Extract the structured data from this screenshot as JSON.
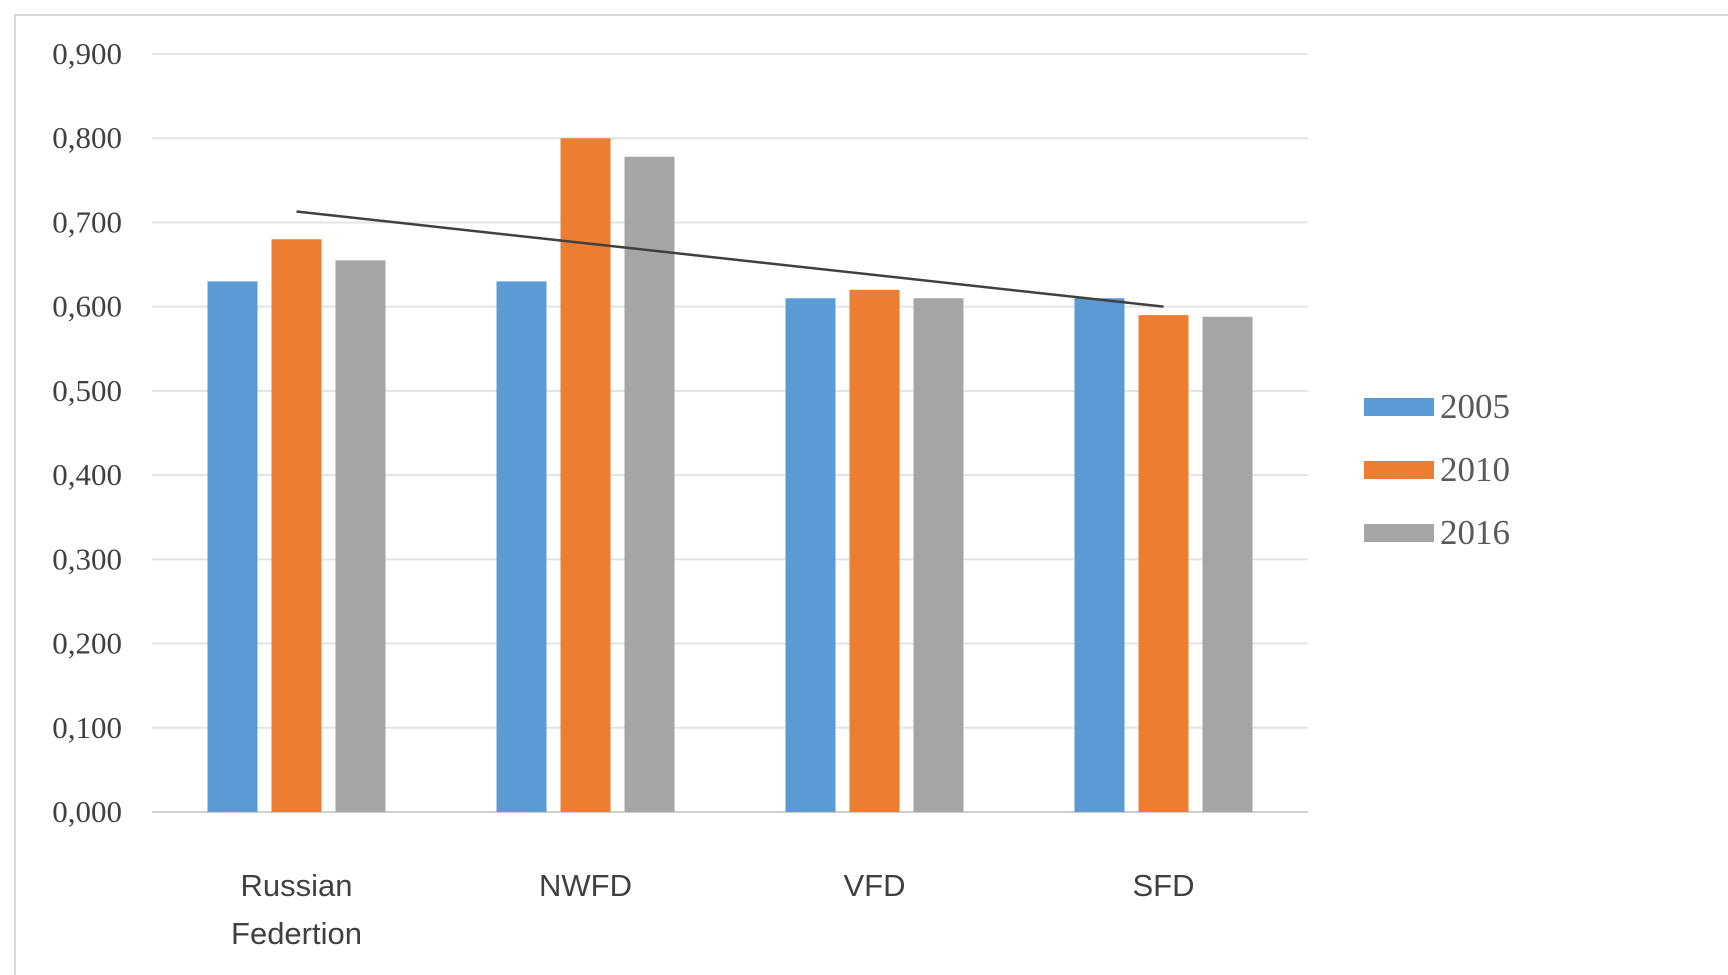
{
  "chart_data": {
    "type": "bar",
    "title": "",
    "xlabel": "",
    "ylabel": "",
    "categories": [
      [
        "Russian",
        "Federtion"
      ],
      [
        "NWFD"
      ],
      [
        "VFD"
      ],
      [
        "SFD"
      ]
    ],
    "series": [
      {
        "name": "2005",
        "color": "#5b9bd5",
        "values": [
          0.63,
          0.63,
          0.61,
          0.61
        ]
      },
      {
        "name": "2010",
        "color": "#ed7d31",
        "values": [
          0.68,
          0.8,
          0.62,
          0.59
        ]
      },
      {
        "name": "2016",
        "color": "#a5a5a5",
        "values": [
          0.655,
          0.778,
          0.61,
          0.588
        ]
      }
    ],
    "ylim": [
      0,
      0.9
    ],
    "yticks": [
      "0,000",
      "0,100",
      "0,200",
      "0,300",
      "0,400",
      "0,500",
      "0,600",
      "0,700",
      "0,800",
      "0,900"
    ],
    "grid": true,
    "legend_position": "right",
    "trendline": {
      "start_value": 0.713,
      "end_value": 0.6,
      "color": "#404040"
    }
  }
}
